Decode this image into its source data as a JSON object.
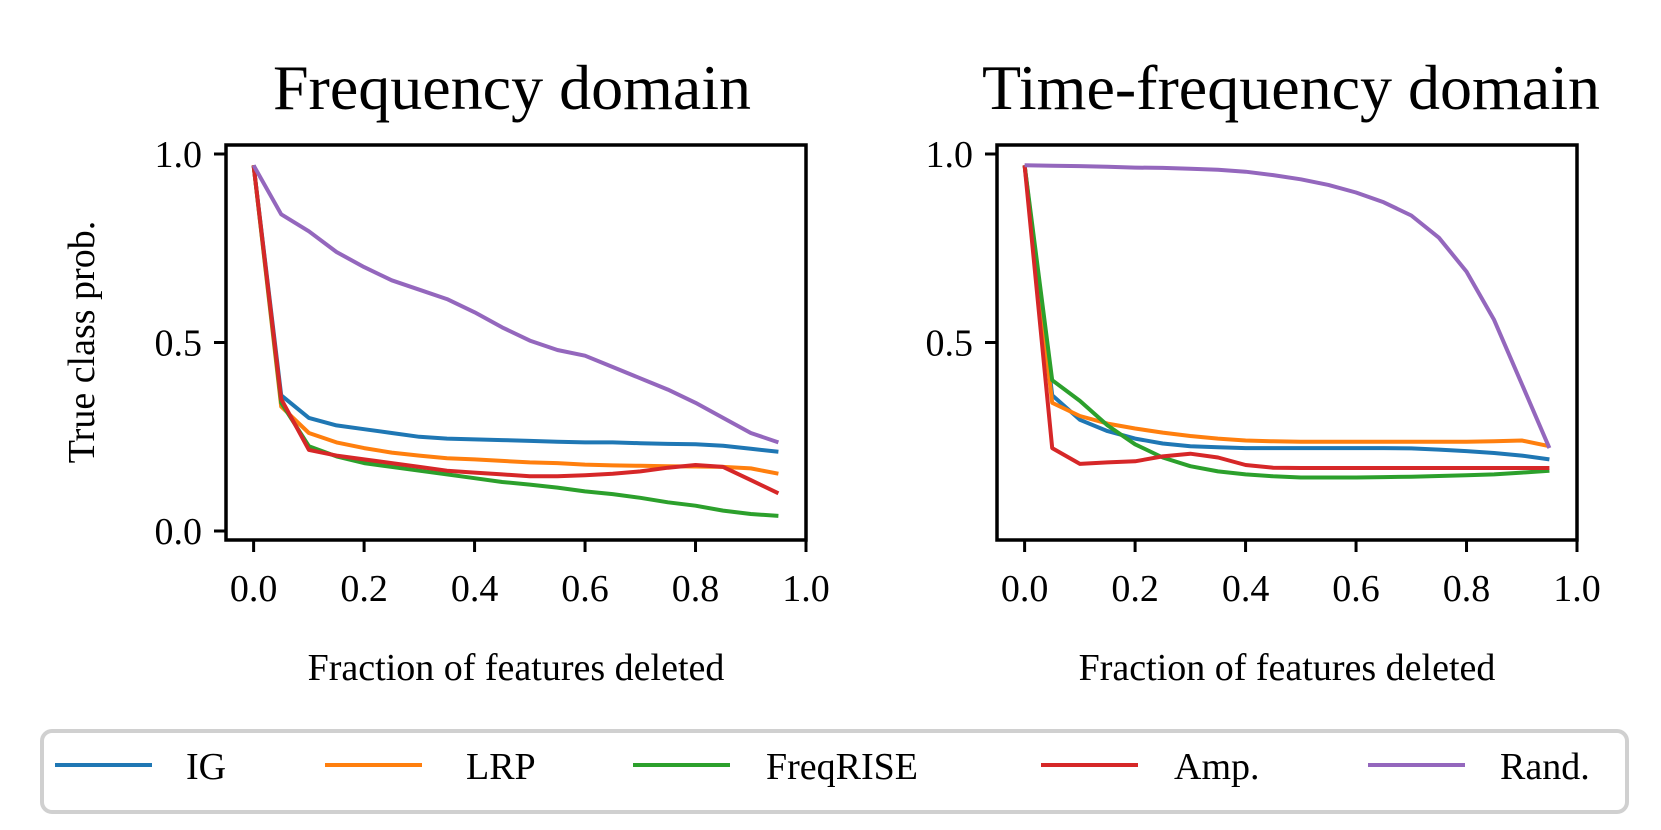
{
  "figure": {
    "ylabel": "True class prob."
  },
  "legend": {
    "items": [
      {
        "label": "IG",
        "color": "#1f77b4"
      },
      {
        "label": "LRP",
        "color": "#ff7f0e"
      },
      {
        "label": "FreqRISE",
        "color": "#2ca02c"
      },
      {
        "label": "Amp.",
        "color": "#d62728"
      },
      {
        "label": "Rand.",
        "color": "#9467bd"
      }
    ]
  },
  "chart_data": [
    {
      "type": "line",
      "title": "Frequency domain",
      "xlabel": "Fraction of features deleted",
      "ylabel": "True class prob.",
      "xlim": [
        -0.05,
        1.0
      ],
      "ylim": [
        0.0,
        1.0
      ],
      "xticks": [
        "0.0",
        "0.2",
        "0.4",
        "0.6",
        "0.8",
        "1.0"
      ],
      "yticks": [
        "0.0",
        "0.5",
        "1.0"
      ],
      "xtick_values": [
        0.0,
        0.2,
        0.4,
        0.6,
        0.8,
        1.0
      ],
      "ytick_values": [
        0.0,
        0.5,
        1.0
      ],
      "x": [
        0.0,
        0.05,
        0.1,
        0.15,
        0.2,
        0.25,
        0.3,
        0.35,
        0.4,
        0.45,
        0.5,
        0.55,
        0.6,
        0.65,
        0.7,
        0.75,
        0.8,
        0.85,
        0.9,
        0.95
      ],
      "series": [
        {
          "name": "IG",
          "values": [
            0.97,
            0.36,
            0.3,
            0.28,
            0.27,
            0.26,
            0.25,
            0.245,
            0.243,
            0.241,
            0.239,
            0.237,
            0.235,
            0.235,
            0.233,
            0.231,
            0.23,
            0.226,
            0.218,
            0.21
          ]
        },
        {
          "name": "LRP",
          "values": [
            0.97,
            0.33,
            0.26,
            0.235,
            0.22,
            0.208,
            0.2,
            0.193,
            0.19,
            0.186,
            0.182,
            0.18,
            0.176,
            0.174,
            0.173,
            0.172,
            0.171,
            0.17,
            0.166,
            0.152
          ]
        },
        {
          "name": "FreqRISE",
          "values": [
            0.97,
            0.34,
            0.225,
            0.198,
            0.18,
            0.17,
            0.16,
            0.15,
            0.14,
            0.13,
            0.123,
            0.115,
            0.105,
            0.098,
            0.088,
            0.076,
            0.067,
            0.054,
            0.045,
            0.04
          ]
        },
        {
          "name": "Amp.",
          "values": [
            0.97,
            0.35,
            0.215,
            0.2,
            0.19,
            0.18,
            0.17,
            0.16,
            0.155,
            0.15,
            0.145,
            0.145,
            0.148,
            0.152,
            0.158,
            0.168,
            0.175,
            0.17,
            0.135,
            0.1
          ]
        },
        {
          "name": "Rand.",
          "values": [
            0.97,
            0.84,
            0.795,
            0.74,
            0.7,
            0.665,
            0.64,
            0.615,
            0.58,
            0.54,
            0.505,
            0.48,
            0.465,
            0.435,
            0.405,
            0.375,
            0.34,
            0.3,
            0.26,
            0.235
          ]
        }
      ]
    },
    {
      "type": "line",
      "title": "Time-frequency domain",
      "xlabel": "Fraction of features deleted",
      "ylabel": "",
      "xlim": [
        -0.05,
        1.0
      ],
      "ylim": [
        0.0,
        1.0
      ],
      "xticks": [
        "0.0",
        "0.2",
        "0.4",
        "0.6",
        "0.8",
        "1.0"
      ],
      "yticks": [
        "0.5",
        "1.0"
      ],
      "xtick_values": [
        0.0,
        0.2,
        0.4,
        0.6,
        0.8,
        1.0
      ],
      "ytick_values": [
        0.5,
        1.0
      ],
      "x": [
        0.0,
        0.05,
        0.1,
        0.15,
        0.2,
        0.25,
        0.3,
        0.35,
        0.4,
        0.45,
        0.5,
        0.55,
        0.6,
        0.65,
        0.7,
        0.75,
        0.8,
        0.85,
        0.9,
        0.95
      ],
      "series": [
        {
          "name": "IG",
          "values": [
            0.97,
            0.36,
            0.295,
            0.265,
            0.245,
            0.232,
            0.225,
            0.222,
            0.22,
            0.22,
            0.22,
            0.22,
            0.22,
            0.22,
            0.219,
            0.216,
            0.212,
            0.207,
            0.2,
            0.19
          ]
        },
        {
          "name": "LRP",
          "values": [
            0.97,
            0.34,
            0.305,
            0.285,
            0.272,
            0.261,
            0.252,
            0.245,
            0.24,
            0.238,
            0.237,
            0.237,
            0.237,
            0.237,
            0.237,
            0.237,
            0.237,
            0.238,
            0.24,
            0.225
          ]
        },
        {
          "name": "FreqRISE",
          "values": [
            0.97,
            0.4,
            0.345,
            0.28,
            0.23,
            0.195,
            0.172,
            0.158,
            0.15,
            0.145,
            0.142,
            0.142,
            0.142,
            0.143,
            0.144,
            0.146,
            0.148,
            0.15,
            0.155,
            0.16
          ]
        },
        {
          "name": "Amp.",
          "values": [
            0.97,
            0.22,
            0.178,
            0.182,
            0.185,
            0.198,
            0.205,
            0.195,
            0.175,
            0.168,
            0.167,
            0.167,
            0.167,
            0.167,
            0.167,
            0.167,
            0.167,
            0.167,
            0.167,
            0.167
          ]
        },
        {
          "name": "Rand.",
          "values": [
            0.97,
            0.969,
            0.968,
            0.966,
            0.964,
            0.963,
            0.961,
            0.958,
            0.953,
            0.944,
            0.933,
            0.918,
            0.898,
            0.872,
            0.837,
            0.778,
            0.688,
            0.56,
            0.39,
            0.22
          ]
        }
      ]
    }
  ]
}
